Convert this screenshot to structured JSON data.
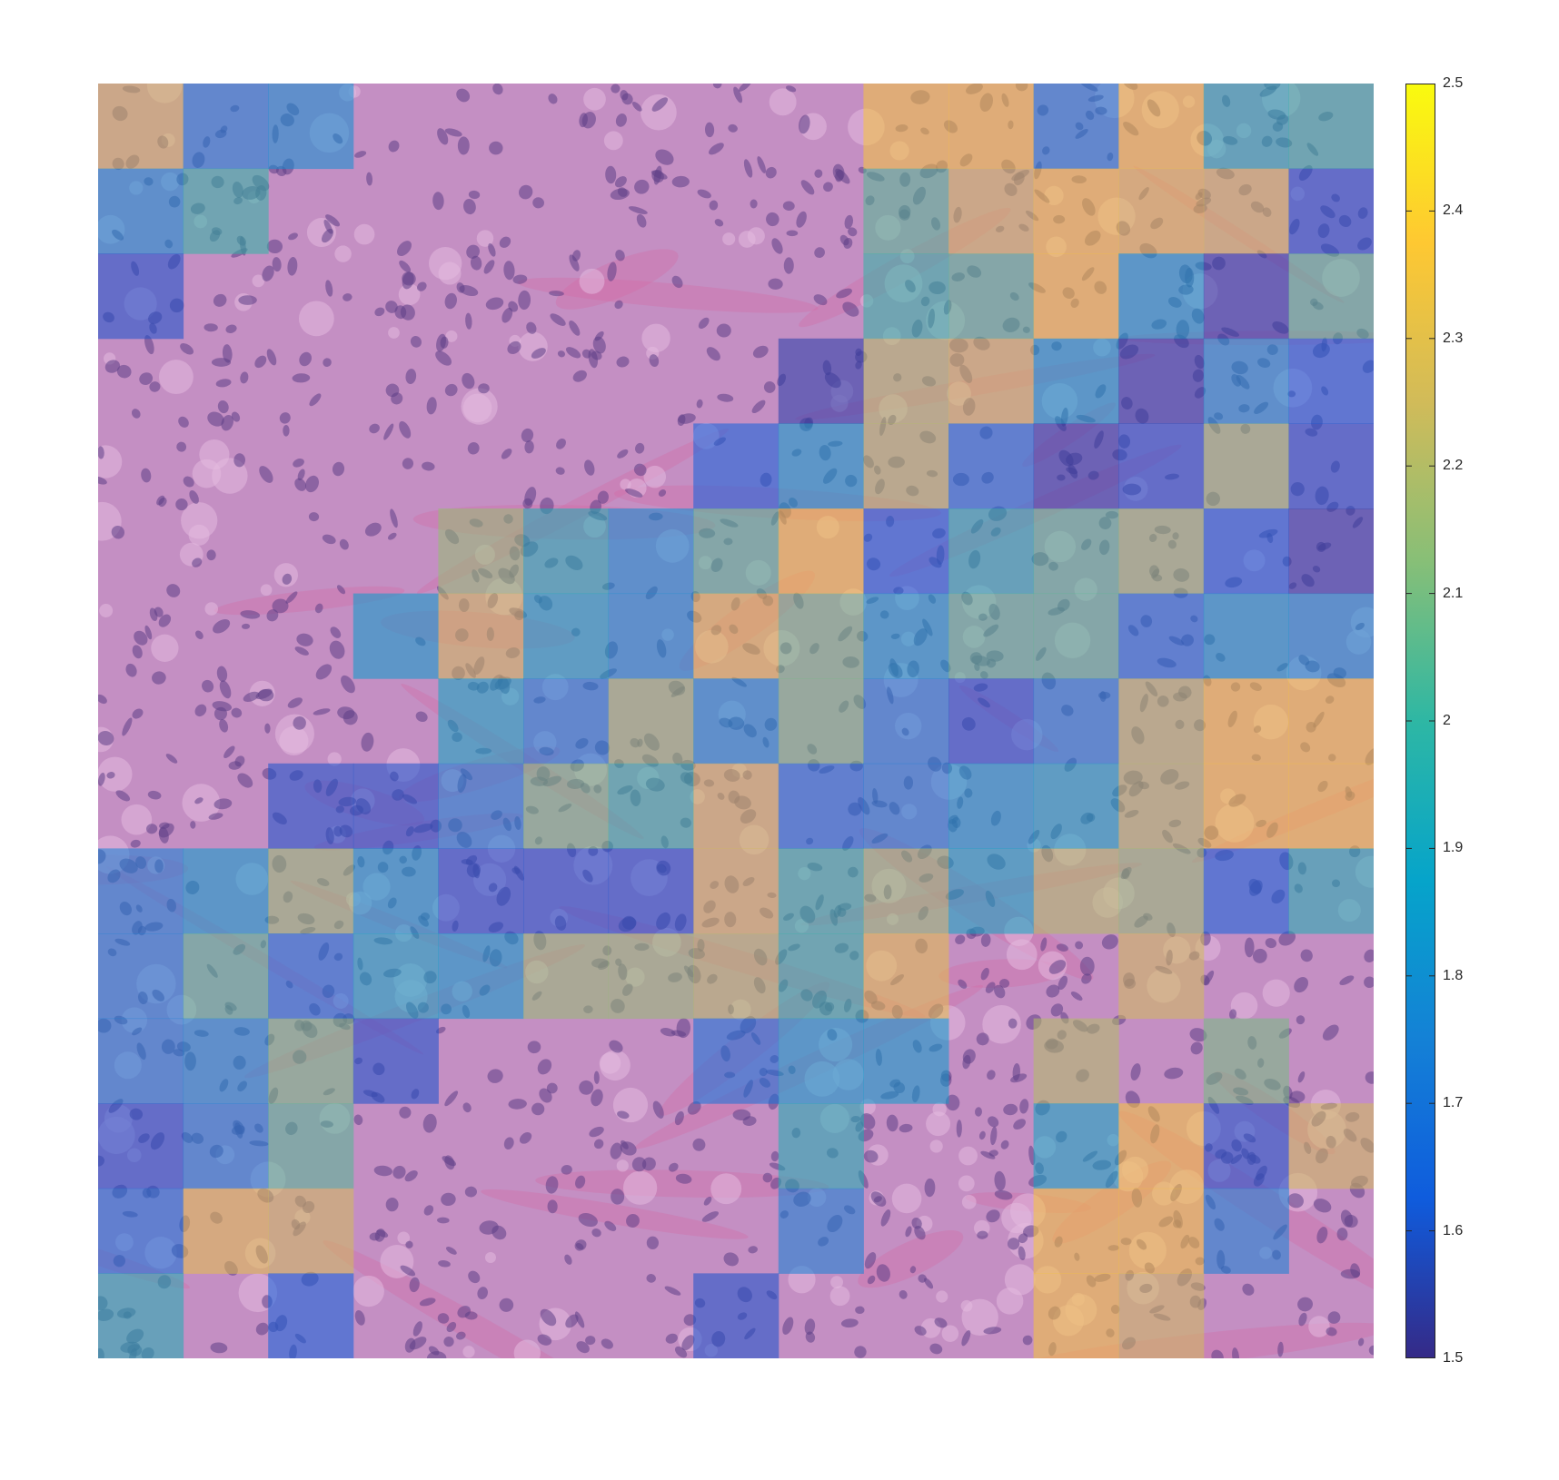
{
  "chart_data": {
    "type": "heatmap",
    "title": "",
    "xlabel": "",
    "ylabel": "",
    "colormap": "parula",
    "overlay_alpha": 0.55,
    "background": "H&E histology tissue image",
    "color_range": [
      1.5,
      2.5
    ],
    "colorbar": {
      "location": "right",
      "ticks": [
        1.5,
        1.6,
        1.7,
        1.8,
        1.9,
        2.0,
        2.1,
        2.2,
        2.3,
        2.4,
        2.5
      ],
      "tick_labels": [
        "1.5",
        "1.6",
        "1.7",
        "1.8",
        "1.9",
        "2",
        "2.1",
        "2.2",
        "2.3",
        "2.4",
        "2.5"
      ]
    },
    "grid_size": [
      15,
      15
    ],
    "values": [
      [
        2.25,
        1.75,
        1.8,
        null,
        null,
        null,
        null,
        null,
        null,
        2.35,
        2.35,
        1.75,
        2.35,
        1.95,
        2.0
      ],
      [
        1.8,
        2.0,
        null,
        null,
        null,
        null,
        null,
        null,
        null,
        2.05,
        2.25,
        2.35,
        2.3,
        2.25,
        1.6
      ],
      [
        1.6,
        null,
        null,
        null,
        null,
        null,
        null,
        null,
        null,
        2.0,
        2.05,
        2.35,
        1.85,
        1.55,
        2.05
      ],
      [
        null,
        null,
        null,
        null,
        null,
        null,
        null,
        null,
        1.55,
        2.2,
        2.25,
        1.85,
        1.55,
        1.8,
        1.65
      ],
      [
        null,
        null,
        null,
        null,
        null,
        null,
        null,
        1.65,
        1.85,
        2.2,
        1.7,
        1.55,
        1.6,
        2.15,
        1.6
      ],
      [
        null,
        null,
        null,
        null,
        2.15,
        1.95,
        1.8,
        2.05,
        2.35,
        1.65,
        1.95,
        2.05,
        2.15,
        1.65,
        1.55
      ],
      [
        null,
        null,
        null,
        1.85,
        2.25,
        1.9,
        1.8,
        2.3,
        2.1,
        1.85,
        2.05,
        2.05,
        1.7,
        1.85,
        1.8
      ],
      [
        null,
        null,
        null,
        null,
        1.9,
        1.75,
        2.15,
        1.8,
        2.1,
        1.75,
        1.6,
        1.75,
        2.2,
        2.35,
        2.35
      ],
      [
        null,
        null,
        1.6,
        1.6,
        1.75,
        2.1,
        2.0,
        2.25,
        1.7,
        1.75,
        1.85,
        1.9,
        2.2,
        2.35,
        2.35
      ],
      [
        1.75,
        1.85,
        2.15,
        1.85,
        1.6,
        1.6,
        1.6,
        2.25,
        2.0,
        2.15,
        1.9,
        2.2,
        2.15,
        1.65,
        1.95
      ],
      [
        1.75,
        2.05,
        1.7,
        1.9,
        1.85,
        2.15,
        2.15,
        2.2,
        2.0,
        2.3,
        null,
        null,
        2.25,
        null,
        null
      ],
      [
        1.75,
        1.8,
        2.1,
        1.6,
        null,
        null,
        null,
        1.7,
        1.85,
        1.85,
        null,
        2.2,
        null,
        2.1,
        null
      ],
      [
        1.6,
        1.75,
        2.05,
        null,
        null,
        null,
        null,
        null,
        1.95,
        null,
        null,
        1.9,
        2.35,
        1.6,
        2.25
      ],
      [
        1.7,
        2.3,
        2.25,
        null,
        null,
        null,
        null,
        null,
        1.75,
        null,
        null,
        2.35,
        2.35,
        1.75,
        null
      ],
      [
        1.95,
        null,
        1.65,
        null,
        null,
        null,
        null,
        1.6,
        null,
        null,
        null,
        2.35,
        2.25,
        null,
        null
      ]
    ]
  },
  "colors": {
    "parula_stops": [
      "#352a87",
      "#0f5cdd",
      "#1481d6",
      "#06a4ca",
      "#2eb7a4",
      "#87bf77",
      "#d1bb59",
      "#fec832",
      "#f9fb0e"
    ],
    "tissue_base": "#c48fc3",
    "tissue_light": "#e3b9de",
    "nucleus": "#5e3f86",
    "stroma": "#d36ba2",
    "blood": "#df4f8c",
    "blank": "#f4eef3"
  }
}
